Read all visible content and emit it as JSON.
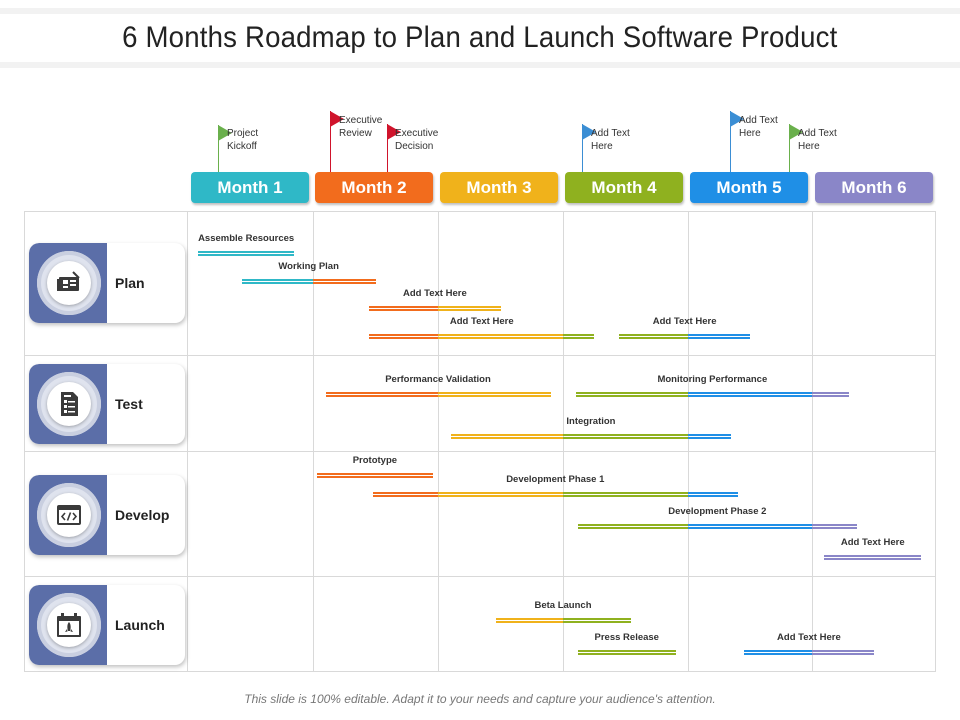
{
  "title": "6 Months Roadmap to Plan and Launch Software Product",
  "months": [
    {
      "label": "Month 1",
      "color": "#2fb8c7"
    },
    {
      "label": "Month 2",
      "color": "#f26c1d"
    },
    {
      "label": "Month 3",
      "color": "#f0b21b"
    },
    {
      "label": "Month 4",
      "color": "#8fb11f"
    },
    {
      "label": "Month 5",
      "color": "#1f8fe6"
    },
    {
      "label": "Month 6",
      "color": "#8a86c8"
    }
  ],
  "milestones": [
    {
      "text": "Project Kickoff",
      "color": "#6ab04c"
    },
    {
      "text": "Executive Review",
      "color": "#d0142c"
    },
    {
      "text": "Executive Decision",
      "color": "#d0142c"
    },
    {
      "text": "Add Text Here",
      "color": "#3b8ed4"
    },
    {
      "text": "Add Text Here",
      "color": "#3b8ed4"
    },
    {
      "text": "Add Text Here",
      "color": "#6ab04c"
    }
  ],
  "phases": [
    {
      "label": "Plan",
      "icon": "blueprint-icon"
    },
    {
      "label": "Test",
      "icon": "checklist-document-icon"
    },
    {
      "label": "Develop",
      "icon": "code-window-icon"
    },
    {
      "label": "Launch",
      "icon": "rocket-calendar-icon"
    }
  ],
  "tasks": [
    {
      "label": "Assemble Resources",
      "phase": "Plan",
      "start": 0.08,
      "end": 0.85
    },
    {
      "label": "Working Plan",
      "phase": "Plan",
      "start": 0.43,
      "end": 1.5
    },
    {
      "label": "Add Text Here",
      "phase": "Plan",
      "start": 1.45,
      "end": 2.5
    },
    {
      "label": "Add Text Here",
      "phase": "Plan",
      "start": 1.45,
      "end": 3.25
    },
    {
      "label": "Add Text Here",
      "phase": "Plan",
      "start": 3.45,
      "end": 4.5
    },
    {
      "label": "Performance Validation",
      "phase": "Test",
      "start": 1.1,
      "end": 2.9
    },
    {
      "label": "Monitoring Performance",
      "phase": "Test",
      "start": 3.1,
      "end": 5.3
    },
    {
      "label": "Integration",
      "phase": "Test",
      "start": 2.1,
      "end": 4.35
    },
    {
      "label": "Prototype",
      "phase": "Develop",
      "start": 1.03,
      "end": 1.96
    },
    {
      "label": "Development Phase 1",
      "phase": "Develop",
      "start": 1.48,
      "end": 4.4
    },
    {
      "label": "Development Phase 2",
      "phase": "Develop",
      "start": 3.12,
      "end": 5.36
    },
    {
      "label": "Add Text Here",
      "phase": "Develop",
      "start": 5.1,
      "end": 5.88
    },
    {
      "label": "Beta Launch",
      "phase": "Launch",
      "start": 2.46,
      "end": 3.54
    },
    {
      "label": "Press Release",
      "phase": "Launch",
      "start": 3.12,
      "end": 3.9
    },
    {
      "label": "Add Text Here",
      "phase": "Launch",
      "start": 4.45,
      "end": 5.5
    }
  ],
  "footer": "This slide is 100% editable. Adapt it to your needs and capture your audience's attention."
}
